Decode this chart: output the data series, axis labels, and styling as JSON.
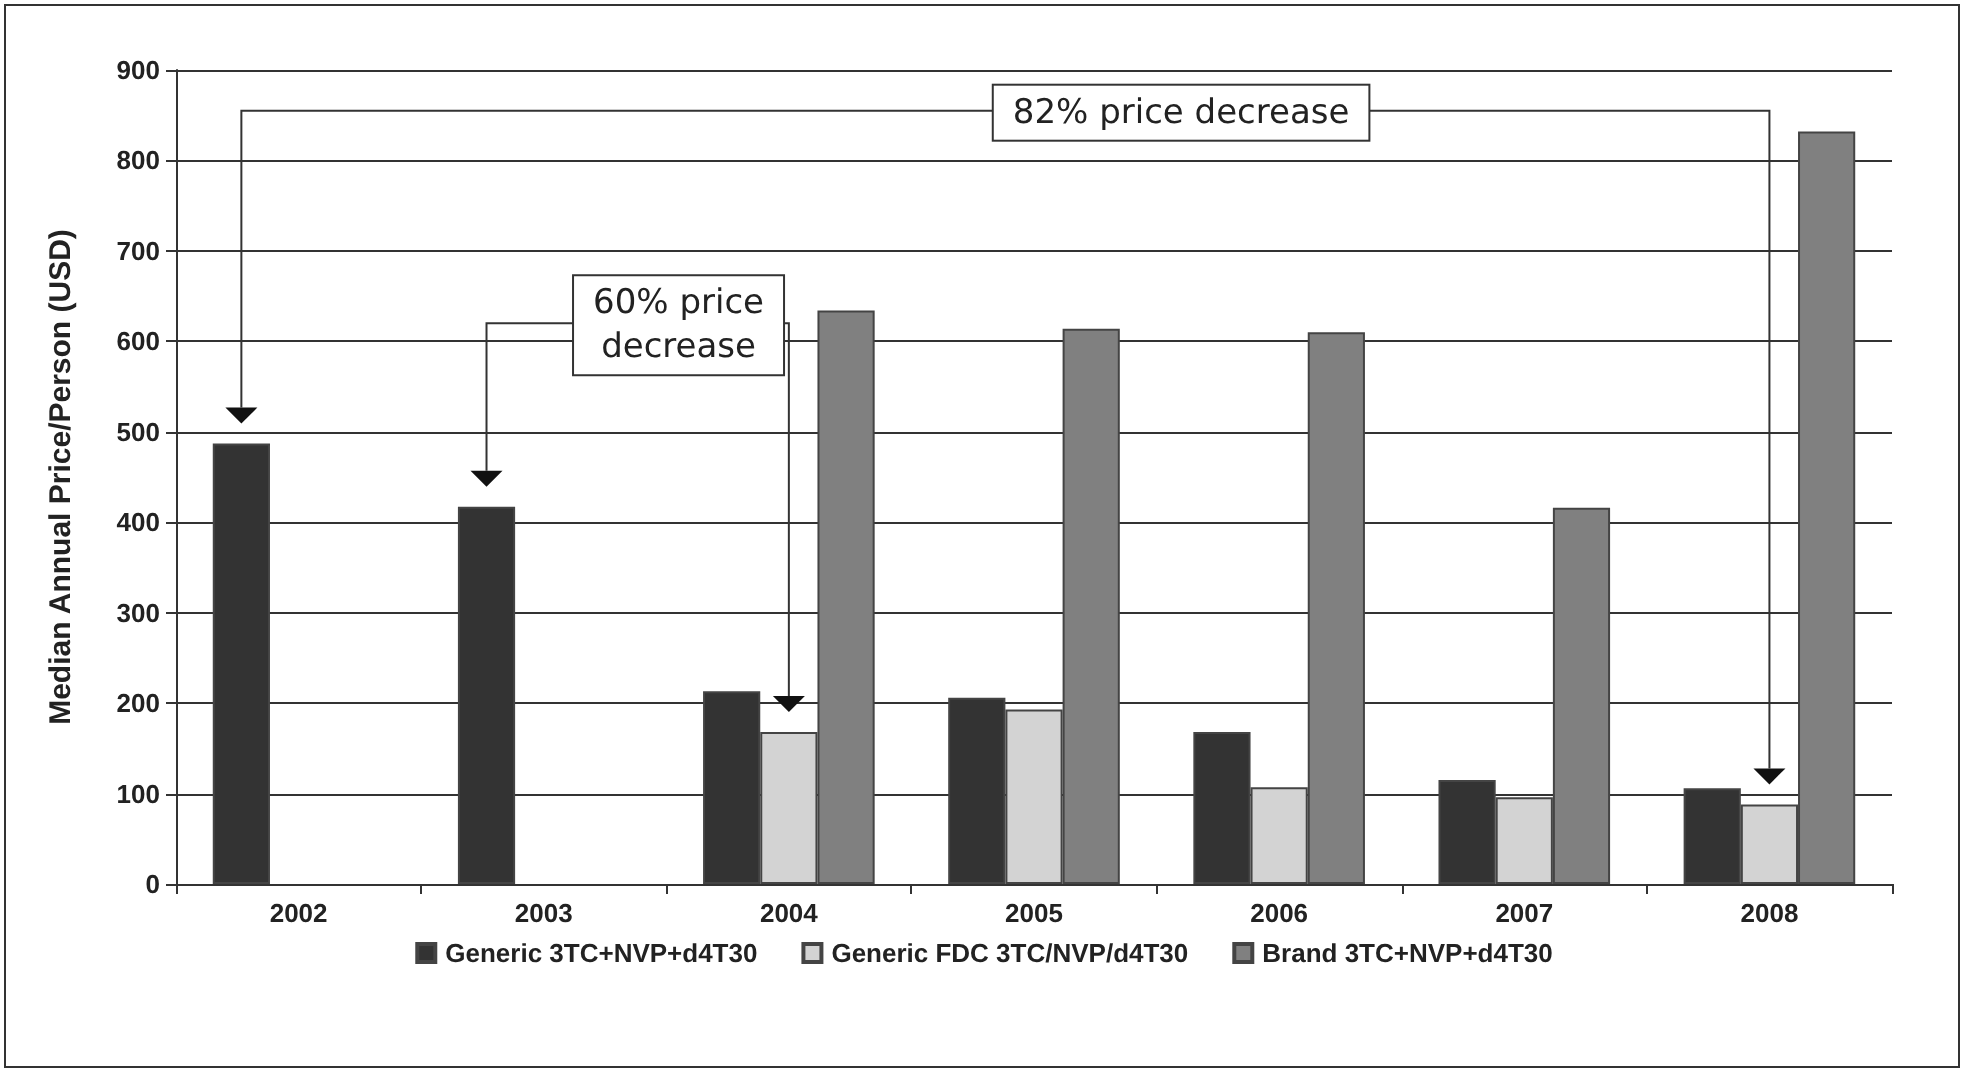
{
  "chart_data": {
    "type": "bar",
    "ylabel": "Median Annual Price/Person (USD)",
    "categories": [
      "2002",
      "2003",
      "2004",
      "2005",
      "2006",
      "2007",
      "2008"
    ],
    "series": [
      {
        "name": "Generic 3TC+NVP+d4T30",
        "color": "#333333",
        "values": [
          487,
          417,
          213,
          206,
          168,
          115,
          106
        ]
      },
      {
        "name": "Generic FDC 3TC/NVP/d4T30",
        "color": "#d3d3d3",
        "values": [
          null,
          null,
          168,
          193,
          107,
          96,
          88
        ]
      },
      {
        "name": "Brand 3TC+NVP+d4T30",
        "color": "#808080",
        "values": [
          null,
          null,
          634,
          614,
          610,
          416,
          832
        ]
      }
    ],
    "ylim": [
      0,
      900
    ],
    "yticks": [
      0,
      100,
      200,
      300,
      400,
      500,
      600,
      700,
      800,
      900
    ],
    "grid": "y",
    "legend": "bottom",
    "annotations": [
      "82% price decrease",
      "60% price\ndecrease"
    ]
  }
}
